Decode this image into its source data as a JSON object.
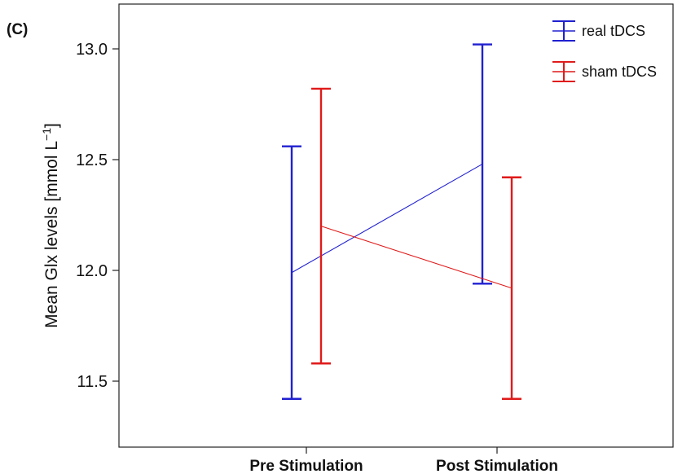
{
  "panel_label": "(C)",
  "chart_data": {
    "type": "line",
    "categories": [
      "Pre Stimulation",
      "Post Stimulation"
    ],
    "ylabel": "Mean Glx levels [mmol L",
    "ylabel_sup": "−1",
    "ylabel_end": "]",
    "ylim": [
      11.2,
      13.2
    ],
    "yticks": [
      11.5,
      12.0,
      12.5,
      13.0
    ],
    "ytick_labels": [
      "11.5",
      "12.0",
      "12.5",
      "13.0"
    ],
    "grid": false,
    "legend_position": "top-right",
    "series": [
      {
        "name": "real tDCS",
        "color": "#2020d0",
        "mean": [
          11.99,
          12.48
        ],
        "lower": [
          11.42,
          11.94
        ],
        "upper": [
          12.56,
          13.02
        ]
      },
      {
        "name": "sham tDCS",
        "color": "#e01a1a",
        "mean": [
          12.2,
          11.92
        ],
        "lower": [
          11.58,
          11.42
        ],
        "upper": [
          12.82,
          12.42
        ]
      }
    ]
  }
}
